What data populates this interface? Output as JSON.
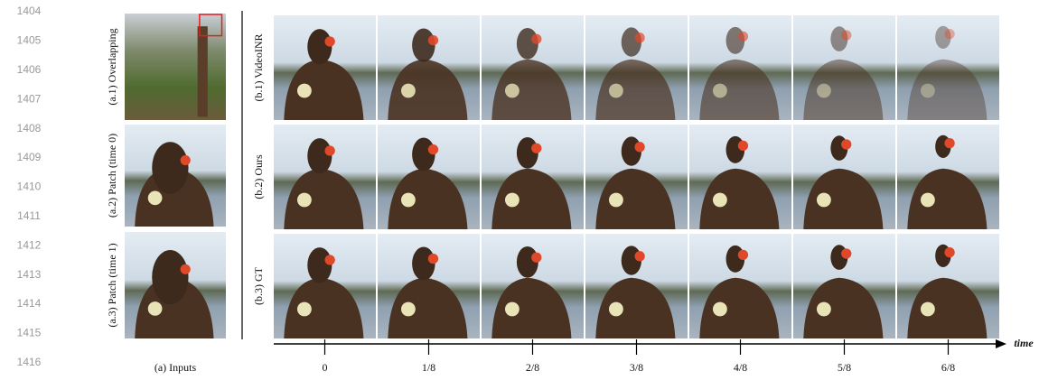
{
  "line_numbers": [
    "1404",
    "1405",
    "1406",
    "1407",
    "1408",
    "1409",
    "1410",
    "1411",
    "1412",
    "1413",
    "1414",
    "1415",
    "1416"
  ],
  "inputs": {
    "labels": [
      "(a.1) Overlapping",
      "(a.2) Patch (time 0)",
      "(a.3) Patch (time 1)"
    ],
    "caption": "(a) Inputs"
  },
  "results": {
    "labels": [
      "(b.1) VideoINR",
      "(b.2) Ours",
      "(b.3) GT"
    ]
  },
  "timeline": {
    "axis_label": "time",
    "ticks": [
      "0",
      "1/8",
      "2/8",
      "3/8",
      "4/8",
      "5/8",
      "6/8"
    ]
  }
}
